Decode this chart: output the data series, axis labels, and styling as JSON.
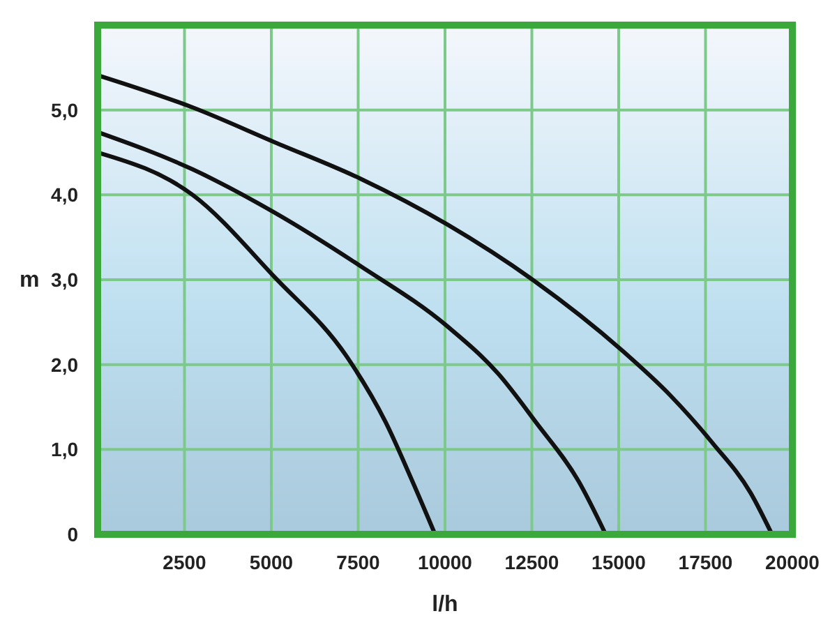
{
  "chart_data": {
    "type": "line",
    "xlabel": "l/h",
    "ylabel": "m",
    "xlim": [
      0,
      20000
    ],
    "ylim": [
      0,
      6
    ],
    "xticks": [
      2500,
      5000,
      7500,
      10000,
      12500,
      15000,
      17500,
      20000
    ],
    "yticks": [
      {
        "value": 0,
        "label": "0"
      },
      {
        "value": 1,
        "label": "1,0"
      },
      {
        "value": 2,
        "label": "2,0"
      },
      {
        "value": 3,
        "label": "3,0"
      },
      {
        "value": 4,
        "label": "4,0"
      },
      {
        "value": 5,
        "label": "5,0"
      }
    ],
    "grid": true,
    "marker": "none",
    "line_style": "solid",
    "series": [
      {
        "color": "#111111",
        "x": [
          0,
          2734,
          5097,
          7212,
          8293,
          9066,
          9714
        ],
        "values": [
          4.5,
          4.0,
          3.03,
          2.07,
          1.32,
          0.62,
          0
        ]
      },
      {
        "color": "#111111",
        "x": [
          0,
          2734,
          5097,
          7568,
          10070,
          11537,
          12618,
          13853,
          14625
        ],
        "values": [
          4.74,
          4.3,
          3.79,
          3.16,
          2.45,
          1.89,
          1.32,
          0.62,
          0
        ]
      },
      {
        "color": "#111111",
        "x": [
          0,
          2734,
          5097,
          7568,
          10070,
          12556,
          15089,
          16479,
          17714,
          18795,
          19413
        ],
        "values": [
          5.41,
          5.03,
          4.62,
          4.19,
          3.65,
          2.99,
          2.17,
          1.64,
          1.07,
          0.49,
          0
        ]
      }
    ]
  }
}
